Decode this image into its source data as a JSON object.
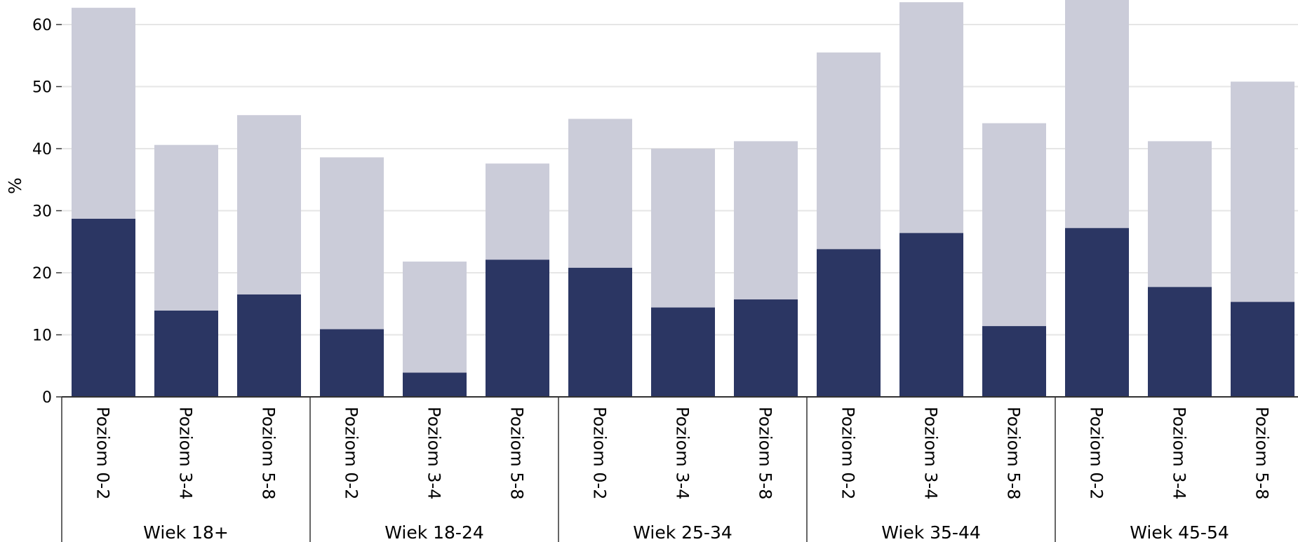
{
  "chart_data": {
    "type": "bar",
    "stacked": false,
    "overlay": true,
    "ylabel": "%",
    "ylim": [
      0,
      63
    ],
    "yticks": [
      0,
      10,
      20,
      30,
      40,
      50,
      60
    ],
    "grid": true,
    "legend": "none",
    "colors": {
      "light": "#cbccd9",
      "dark": "#2b3663",
      "grid": "#e6e6e6",
      "axis": "#333333"
    },
    "groups": [
      {
        "label": "Wiek 18+",
        "categories": [
          "Poziom 0-2",
          "Poziom 3-4",
          "Poziom 5-8"
        ],
        "light_values": [
          62.7,
          40.6,
          45.4
        ],
        "dark_values": [
          28.7,
          13.9,
          16.5
        ]
      },
      {
        "label": "Wiek 18-24",
        "categories": [
          "Poziom 0-2",
          "Poziom 3-4",
          "Poziom 5-8"
        ],
        "light_values": [
          38.6,
          21.8,
          37.6
        ],
        "dark_values": [
          10.9,
          3.9,
          22.1
        ]
      },
      {
        "label": "Wiek 25-34",
        "categories": [
          "Poziom 0-2",
          "Poziom 3-4",
          "Poziom 5-8"
        ],
        "light_values": [
          44.8,
          40.0,
          41.2
        ],
        "dark_values": [
          20.8,
          14.4,
          15.7
        ]
      },
      {
        "label": "Wiek 35-44",
        "categories": [
          "Poziom 0-2",
          "Poziom 3-4",
          "Poziom 5-8"
        ],
        "light_values": [
          55.5,
          63.6,
          44.1
        ],
        "dark_values": [
          23.8,
          26.4,
          11.4
        ]
      },
      {
        "label": "Wiek 45-54",
        "categories": [
          "Poziom 0-2",
          "Poziom 3-4",
          "Poziom 5-8"
        ],
        "light_values": [
          64.0,
          41.2,
          50.8
        ],
        "dark_values": [
          27.2,
          17.7,
          15.3
        ]
      }
    ]
  }
}
